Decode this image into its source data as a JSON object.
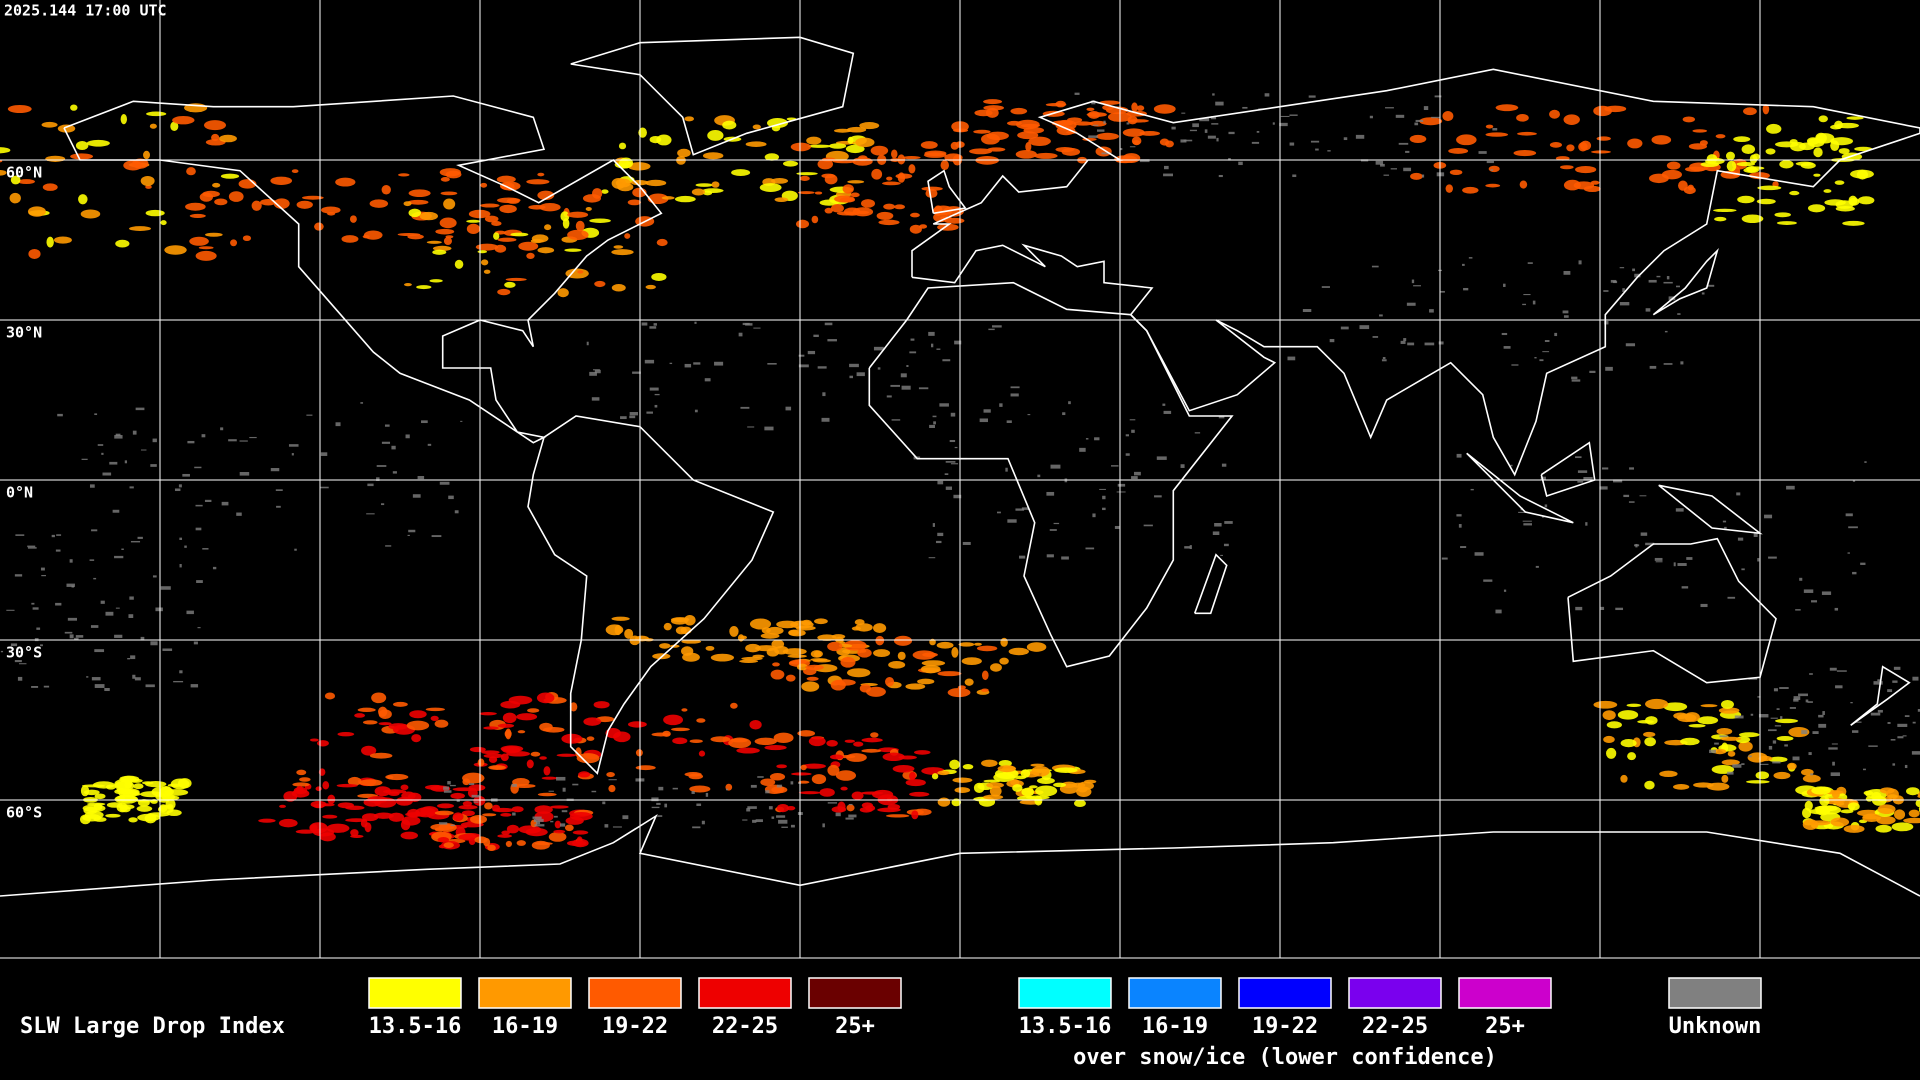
{
  "header": {
    "timestamp": "2025.144 17:00 UTC"
  },
  "lat_labels": [
    "60°N",
    "30°N",
    "0°N",
    "30°S",
    "60°S"
  ],
  "legend": {
    "title": "SLW Large Drop Index",
    "groups": [
      {
        "items": [
          {
            "label": "13.5-16",
            "color": "#ffff00"
          },
          {
            "label": "16-19",
            "color": "#ff9900"
          },
          {
            "label": "19-22",
            "color": "#ff5a00"
          },
          {
            "label": "22-25",
            "color": "#ee0000"
          },
          {
            "label": "25+",
            "color": "#6a0000"
          }
        ]
      },
      {
        "items": [
          {
            "label": "13.5-16",
            "color": "#00ffff"
          },
          {
            "label": "16-19",
            "color": "#0a84ff"
          },
          {
            "label": "19-22",
            "color": "#0000ff"
          },
          {
            "label": "22-25",
            "color": "#7a00ee"
          },
          {
            "label": "25+",
            "color": "#cc00cc"
          }
        ],
        "caption": "over snow/ice (lower confidence)"
      },
      {
        "items": [
          {
            "label": "Unknown",
            "color": "#808080"
          }
        ]
      }
    ]
  }
}
